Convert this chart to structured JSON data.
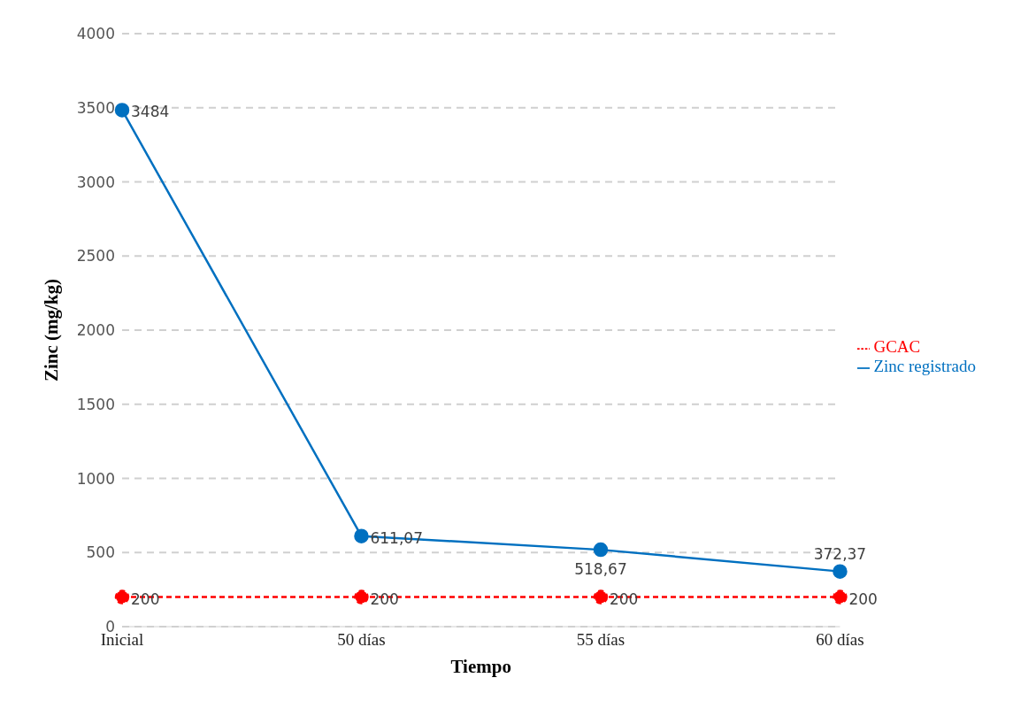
{
  "chart_data": {
    "type": "line",
    "xlabel": "Tiempo",
    "ylabel": "Zinc (mg/kg)",
    "categories": [
      "Inicial",
      "50 días",
      "55 días",
      "60 días"
    ],
    "series": [
      {
        "name": "Zinc registrado",
        "color": "#0070c0",
        "values": [
          3484,
          611.07,
          518.67,
          372.37
        ],
        "value_labels": [
          "3484",
          "611,07",
          "518,67",
          "372,37"
        ],
        "marker": "circle",
        "line_style": "solid"
      },
      {
        "name": "GCAC",
        "color": "#ff0000",
        "values": [
          200,
          200,
          200,
          200
        ],
        "value_labels": [
          "200",
          "200",
          "200",
          "200"
        ],
        "marker": "circle",
        "line_style": "dashed"
      }
    ],
    "ylim": [
      0,
      4000
    ],
    "yticks": [
      0,
      500,
      1000,
      1500,
      2000,
      2500,
      3000,
      3500,
      4000
    ],
    "grid": "y",
    "legend": "right"
  }
}
